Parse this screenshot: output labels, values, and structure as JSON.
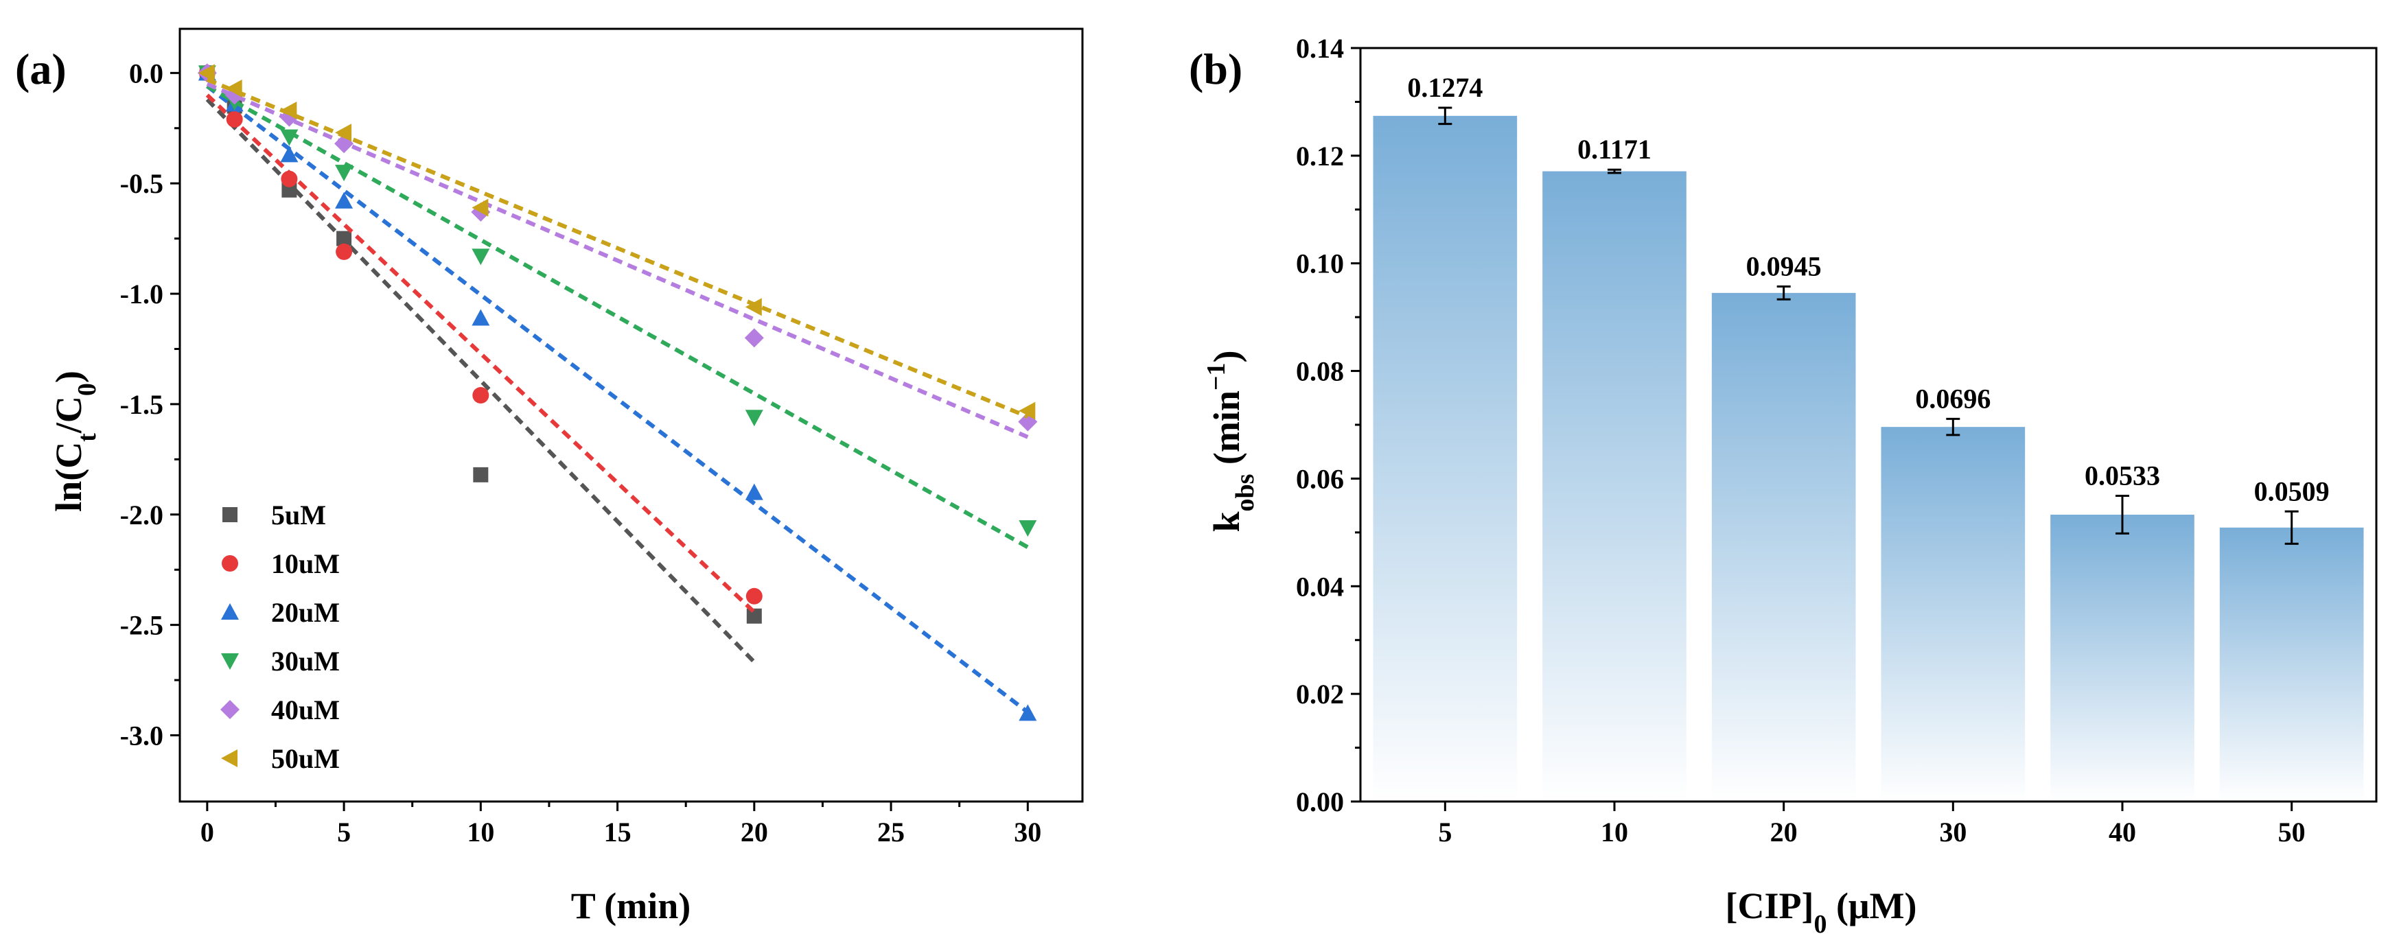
{
  "chart_data": [
    {
      "panel": "(a)",
      "type": "scatter",
      "xlabel": "T (min)",
      "ylabel": "ln(Ct/C0)",
      "xlim": [
        -1,
        32
      ],
      "ylim": [
        -3.3,
        0.2
      ],
      "xticks": [
        0,
        5,
        10,
        15,
        20,
        25,
        30
      ],
      "yticks": [
        0.0,
        -0.5,
        -1.0,
        -1.5,
        -2.0,
        -2.5,
        -3.0
      ],
      "ytick_labels": [
        "0.0",
        "-0.5",
        "-1.0",
        "-1.5",
        "-2.0",
        "-2.5",
        "-3.0"
      ],
      "legend_position": "bottom-left",
      "series": [
        {
          "name": "5uM",
          "color": "#555555",
          "marker": "square",
          "x": [
            0,
            1,
            3,
            5,
            10,
            20
          ],
          "y": [
            0,
            -0.15,
            -0.53,
            -0.75,
            -1.82,
            -2.46
          ],
          "fit": {
            "slope": -0.1274,
            "intercept": -0.12,
            "x_range": [
              0,
              20
            ]
          }
        },
        {
          "name": "10uM",
          "color": "#e8393a",
          "marker": "circle",
          "x": [
            0,
            1,
            3,
            5,
            10,
            20
          ],
          "y": [
            0,
            -0.21,
            -0.48,
            -0.81,
            -1.46,
            -2.37
          ],
          "fit": {
            "slope": -0.1171,
            "intercept": -0.1,
            "x_range": [
              0,
              20
            ]
          }
        },
        {
          "name": "20uM",
          "color": "#2a73d6",
          "marker": "triangle-up",
          "x": [
            0,
            1,
            3,
            5,
            10,
            20,
            30
          ],
          "y": [
            0,
            -0.14,
            -0.37,
            -0.58,
            -1.11,
            -1.9,
            -2.9
          ],
          "fit": {
            "slope": -0.0945,
            "intercept": -0.06,
            "x_range": [
              0,
              30
            ]
          }
        },
        {
          "name": "30uM",
          "color": "#2eaa5a",
          "marker": "triangle-down",
          "x": [
            0,
            1,
            3,
            5,
            10,
            20,
            30
          ],
          "y": [
            0,
            -0.13,
            -0.29,
            -0.45,
            -0.83,
            -1.56,
            -2.06
          ],
          "fit": {
            "slope": -0.0696,
            "intercept": -0.06,
            "x_range": [
              0,
              30
            ]
          }
        },
        {
          "name": "40uM",
          "color": "#b57de0",
          "marker": "diamond",
          "x": [
            0,
            1,
            3,
            5,
            10,
            20,
            30
          ],
          "y": [
            0,
            -0.1,
            -0.2,
            -0.32,
            -0.63,
            -1.2,
            -1.58
          ],
          "fit": {
            "slope": -0.0533,
            "intercept": -0.05,
            "x_range": [
              0,
              30
            ]
          }
        },
        {
          "name": "50uM",
          "color": "#c9a21a",
          "marker": "triangle-left",
          "x": [
            0,
            1,
            3,
            5,
            10,
            20,
            30
          ],
          "y": [
            0,
            -0.07,
            -0.17,
            -0.27,
            -0.61,
            -1.06,
            -1.53
          ],
          "fit": {
            "slope": -0.0509,
            "intercept": -0.03,
            "x_range": [
              0,
              30
            ]
          }
        }
      ]
    },
    {
      "panel": "(b)",
      "type": "bar",
      "xlabel": "[CIP]0 (μM)",
      "ylabel": "kobs (min−1)",
      "categories": [
        "5",
        "10",
        "20",
        "30",
        "40",
        "50"
      ],
      "values": [
        0.1274,
        0.1171,
        0.0945,
        0.0696,
        0.0533,
        0.0509
      ],
      "value_labels": [
        "0.1274",
        "0.1171",
        "0.0945",
        "0.0696",
        "0.0533",
        "0.0509"
      ],
      "errors": [
        0.0015,
        0.0003,
        0.0012,
        0.0015,
        0.0035,
        0.003
      ],
      "ylim": [
        0,
        0.14
      ],
      "yticks": [
        0.0,
        0.02,
        0.04,
        0.06,
        0.08,
        0.1,
        0.12,
        0.14
      ],
      "ytick_labels": [
        "0.00",
        "0.02",
        "0.04",
        "0.06",
        "0.08",
        "0.10",
        "0.12",
        "0.14"
      ],
      "bar_color": "#79aed8"
    }
  ]
}
